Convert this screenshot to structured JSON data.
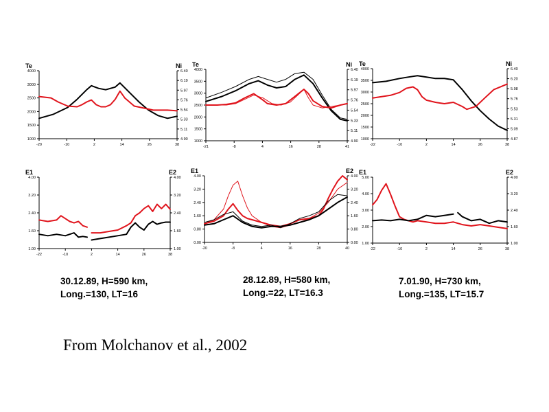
{
  "colors": {
    "red": "#e0141c",
    "black": "#000000",
    "axis": "#000000"
  },
  "chart_data": [
    {
      "type": "line",
      "y_left_label": "Te",
      "y_right_label": "Ni",
      "x_ticks": [
        "-20",
        "-10",
        "2",
        "14",
        "26",
        "38"
      ],
      "y_left_ticks": [
        "1000",
        "1500",
        "2000",
        "2500",
        "3000",
        "4000"
      ],
      "y_right_ticks": [
        "4.90",
        "5.11",
        "5.33",
        "5.54",
        "5.76",
        "5.97",
        "6.19",
        "6.40"
      ],
      "xlim": [
        -20,
        38
      ],
      "ylim": [
        0,
        1
      ],
      "series": [
        {
          "color": "black",
          "width": 2,
          "dash": "",
          "x": [
            -20,
            -14,
            -8,
            -4,
            0,
            2,
            5,
            8,
            12,
            14,
            18,
            22,
            26,
            30,
            34,
            38
          ],
          "y": [
            0.3,
            0.36,
            0.46,
            0.58,
            0.72,
            0.78,
            0.74,
            0.72,
            0.76,
            0.82,
            0.68,
            0.54,
            0.42,
            0.34,
            0.3,
            0.33
          ]
        },
        {
          "color": "red",
          "width": 2,
          "dash": "",
          "x": [
            -20,
            -15,
            -12,
            -8,
            -4,
            -2,
            0,
            2,
            4,
            6,
            8,
            10,
            12,
            14,
            16,
            20,
            24,
            28,
            34,
            38
          ],
          "y": [
            0.62,
            0.6,
            0.54,
            0.48,
            0.47,
            0.5,
            0.54,
            0.57,
            0.5,
            0.47,
            0.47,
            0.5,
            0.58,
            0.7,
            0.6,
            0.48,
            0.45,
            0.42,
            0.42,
            0.41
          ]
        }
      ]
    },
    {
      "type": "line",
      "y_left_label": "Te",
      "y_right_label": "Ni",
      "x_ticks": [
        "-21",
        "-8",
        "4",
        "16",
        "28",
        "41"
      ],
      "y_left_ticks": [
        "1000",
        "1500",
        "2000",
        "2500",
        "3000",
        "3500",
        "4000"
      ],
      "y_right_ticks": [
        "4.90",
        "5.11",
        "5.33",
        "5.54",
        "5.76",
        "5.97",
        "6.19",
        "6.40"
      ],
      "xlim": [
        -21,
        41
      ],
      "ylim": [
        0,
        1
      ],
      "series": [
        {
          "color": "black",
          "width": 2,
          "dash": "",
          "x": [
            -21,
            -14,
            -8,
            -2,
            2,
            6,
            10,
            14,
            18,
            22,
            26,
            30,
            34,
            38,
            41
          ],
          "y": [
            0.55,
            0.62,
            0.7,
            0.8,
            0.84,
            0.78,
            0.74,
            0.76,
            0.86,
            0.92,
            0.8,
            0.6,
            0.42,
            0.3,
            0.28
          ]
        },
        {
          "color": "black",
          "width": 1,
          "dash": "",
          "x": [
            -21,
            -14,
            -8,
            -2,
            2,
            6,
            10,
            14,
            18,
            22,
            26,
            30,
            34,
            38,
            41
          ],
          "y": [
            0.6,
            0.68,
            0.76,
            0.86,
            0.9,
            0.86,
            0.82,
            0.86,
            0.94,
            0.96,
            0.86,
            0.64,
            0.44,
            0.32,
            0.3
          ]
        },
        {
          "color": "red",
          "width": 2,
          "dash": "",
          "x": [
            -21,
            -16,
            -12,
            -8,
            -4,
            0,
            4,
            6,
            10,
            14,
            18,
            22,
            24,
            26,
            30,
            34,
            38,
            41
          ],
          "y": [
            0.5,
            0.5,
            0.51,
            0.53,
            0.6,
            0.66,
            0.57,
            0.52,
            0.5,
            0.52,
            0.62,
            0.72,
            0.66,
            0.56,
            0.48,
            0.46,
            0.5,
            0.52
          ]
        },
        {
          "color": "red",
          "width": 1,
          "dash": "",
          "x": [
            -21,
            -16,
            -12,
            -8,
            -4,
            0,
            4,
            8,
            12,
            16,
            20,
            22,
            24,
            26,
            30,
            34,
            38,
            41
          ],
          "y": [
            0.5,
            0.5,
            0.5,
            0.52,
            0.58,
            0.64,
            0.6,
            0.52,
            0.5,
            0.54,
            0.66,
            0.72,
            0.6,
            0.5,
            0.46,
            0.48,
            0.5,
            0.52
          ]
        }
      ]
    },
    {
      "type": "line",
      "y_left_label": "Te",
      "y_right_label": "Ni",
      "x_ticks": [
        "-22",
        "-10",
        "2",
        "14",
        "26",
        "38"
      ],
      "y_left_ticks": [
        "1000",
        "1500",
        "2000",
        "2500",
        "3000",
        "3500",
        "4000"
      ],
      "y_right_ticks": [
        "4.87",
        "5.09",
        "5.31",
        "5.53",
        "5.76",
        "5.98",
        "6.20",
        "6.40"
      ],
      "xlim": [
        -22,
        38
      ],
      "ylim": [
        0,
        1
      ],
      "series": [
        {
          "color": "black",
          "width": 2,
          "dash": "",
          "x": [
            -22,
            -16,
            -10,
            -6,
            -2,
            2,
            6,
            10,
            14,
            18,
            22,
            26,
            30,
            34,
            38
          ],
          "y": [
            0.8,
            0.82,
            0.86,
            0.88,
            0.9,
            0.88,
            0.86,
            0.86,
            0.84,
            0.7,
            0.54,
            0.4,
            0.28,
            0.18,
            0.12
          ]
        },
        {
          "color": "red",
          "width": 2,
          "dash": "",
          "x": [
            -22,
            -18,
            -14,
            -10,
            -7,
            -4,
            -2,
            0,
            2,
            6,
            10,
            14,
            18,
            20,
            24,
            28,
            32,
            38
          ],
          "y": [
            0.58,
            0.6,
            0.62,
            0.66,
            0.72,
            0.74,
            0.7,
            0.6,
            0.55,
            0.52,
            0.5,
            0.52,
            0.46,
            0.42,
            0.46,
            0.58,
            0.7,
            0.78
          ]
        }
      ]
    },
    {
      "type": "line",
      "y_left_label": "E1",
      "y_right_label": "E2",
      "x_ticks": [
        "-22",
        "-10",
        "2",
        "14",
        "26",
        "38"
      ],
      "y_left_ticks": [
        "1.00",
        "1.60",
        "2.40",
        "3.20",
        "4.00"
      ],
      "y_right_ticks": [
        "1.00",
        "1.60",
        "2.40",
        "3.20",
        "4.00"
      ],
      "xlim": [
        -22,
        38
      ],
      "ylim": [
        0,
        1
      ],
      "series": [
        {
          "color": "red",
          "width": 2,
          "dash": "",
          "x": [
            -22,
            -18,
            -14,
            -12,
            -10,
            -8,
            -6,
            -4,
            -2,
            0
          ],
          "y": [
            0.4,
            0.38,
            0.4,
            0.46,
            0.42,
            0.38,
            0.36,
            0.38,
            0.32,
            0.3
          ]
        },
        {
          "color": "red",
          "width": 2,
          "dash": "",
          "x": [
            2,
            6,
            10,
            14,
            18,
            20,
            22,
            24,
            26,
            28,
            30,
            32,
            34,
            36,
            38
          ],
          "y": [
            0.22,
            0.22,
            0.24,
            0.26,
            0.32,
            0.36,
            0.46,
            0.5,
            0.56,
            0.6,
            0.52,
            0.62,
            0.56,
            0.62,
            0.55
          ]
        },
        {
          "color": "black",
          "width": 2,
          "dash": "",
          "x": [
            -22,
            -18,
            -14,
            -10,
            -6,
            -4,
            -2,
            0
          ],
          "y": [
            0.2,
            0.18,
            0.2,
            0.18,
            0.22,
            0.16,
            0.17,
            0.16
          ]
        },
        {
          "color": "black",
          "width": 2,
          "dash": "",
          "x": [
            2,
            6,
            10,
            14,
            18,
            20,
            22,
            24,
            26,
            28,
            30,
            32,
            34,
            36,
            38
          ],
          "y": [
            0.12,
            0.14,
            0.16,
            0.18,
            0.2,
            0.3,
            0.36,
            0.3,
            0.26,
            0.34,
            0.38,
            0.34,
            0.36,
            0.37,
            0.37
          ]
        }
      ]
    },
    {
      "type": "line",
      "y_left_label": "E1",
      "y_right_label": "E2",
      "x_ticks": [
        "-20",
        "-8",
        "4",
        "16",
        "28",
        "40"
      ],
      "y_left_ticks": [
        "0.00",
        "0.80",
        "1.60",
        "2.40",
        "3.20",
        "4.00"
      ],
      "y_right_ticks": [
        "0.00",
        "0.80",
        "1.60",
        "2.40",
        "3.20",
        "4.00"
      ],
      "xlim": [
        -20,
        40
      ],
      "ylim": [
        0,
        1
      ],
      "series": [
        {
          "color": "red",
          "width": 1,
          "dash": "",
          "x": [
            -20,
            -16,
            -12,
            -10,
            -8,
            -6,
            -4,
            -2,
            0,
            4,
            8,
            12,
            16,
            20,
            24,
            28,
            32,
            36,
            40
          ],
          "y": [
            0.28,
            0.34,
            0.5,
            0.7,
            0.86,
            0.92,
            0.7,
            0.52,
            0.4,
            0.3,
            0.24,
            0.22,
            0.26,
            0.3,
            0.36,
            0.44,
            0.6,
            0.8,
            0.9
          ]
        },
        {
          "color": "red",
          "width": 2,
          "dash": "",
          "x": [
            -20,
            -16,
            -12,
            -10,
            -8,
            -6,
            -4,
            -2,
            0,
            4,
            8,
            12,
            16,
            20,
            24,
            28,
            30,
            32,
            34,
            36,
            38,
            40
          ],
          "y": [
            0.28,
            0.32,
            0.4,
            0.5,
            0.58,
            0.48,
            0.4,
            0.36,
            0.34,
            0.3,
            0.26,
            0.24,
            0.28,
            0.34,
            0.36,
            0.4,
            0.5,
            0.66,
            0.8,
            0.92,
            1.0,
            0.94
          ]
        },
        {
          "color": "black",
          "width": 2,
          "dash": "",
          "x": [
            -20,
            -16,
            -12,
            -8,
            -4,
            0,
            4,
            8,
            12,
            16,
            20,
            24,
            28,
            32,
            36,
            40
          ],
          "y": [
            0.26,
            0.28,
            0.34,
            0.4,
            0.3,
            0.24,
            0.22,
            0.24,
            0.24,
            0.26,
            0.3,
            0.34,
            0.4,
            0.5,
            0.6,
            0.68
          ]
        },
        {
          "color": "black",
          "width": 1,
          "dash": "",
          "x": [
            -20,
            -16,
            -12,
            -8,
            -4,
            0,
            4,
            8,
            12,
            16,
            20,
            24,
            28,
            32,
            36,
            40
          ],
          "y": [
            0.3,
            0.34,
            0.42,
            0.46,
            0.32,
            0.26,
            0.24,
            0.26,
            0.22,
            0.28,
            0.36,
            0.4,
            0.46,
            0.62,
            0.72,
            0.7
          ]
        }
      ]
    },
    {
      "type": "line",
      "y_left_label": "E1",
      "y_right_label": "E2",
      "x_ticks": [
        "-22",
        "-10",
        "2",
        "14",
        "26",
        "38"
      ],
      "y_left_ticks": [
        "1.00",
        "2.00",
        "3.00",
        "4.00",
        "5.00"
      ],
      "y_right_ticks": [
        "1.00",
        "1.60",
        "2.40",
        "3.20",
        "4.00"
      ],
      "xlim": [
        -22,
        38
      ],
      "ylim": [
        0,
        1
      ],
      "series": [
        {
          "color": "red",
          "width": 2,
          "dash": "",
          "x": [
            -22,
            -20,
            -18,
            -16,
            -14,
            -12,
            -10,
            -8,
            -6,
            -4,
            -2,
            2,
            6,
            10,
            14,
            18,
            22,
            26,
            30,
            34,
            38
          ],
          "y": [
            0.58,
            0.66,
            0.8,
            0.9,
            0.74,
            0.56,
            0.4,
            0.36,
            0.34,
            0.32,
            0.34,
            0.32,
            0.3,
            0.3,
            0.32,
            0.28,
            0.26,
            0.28,
            0.26,
            0.24,
            0.22
          ]
        },
        {
          "color": "black",
          "width": 2,
          "dash": "",
          "x": [
            -22,
            -18,
            -14,
            -10,
            -6,
            -2,
            2,
            6,
            10,
            14
          ],
          "y": [
            0.34,
            0.35,
            0.34,
            0.36,
            0.34,
            0.36,
            0.42,
            0.4,
            0.42,
            0.44
          ]
        },
        {
          "color": "black",
          "width": 2,
          "dash": "",
          "x": [
            16,
            18,
            22,
            26,
            30,
            34,
            38
          ],
          "y": [
            0.46,
            0.4,
            0.34,
            0.36,
            0.3,
            0.34,
            0.32
          ]
        }
      ]
    }
  ],
  "captions": [
    {
      "line1": "30.12.89, H=590 km,",
      "line2": "Long.=130, LT=16"
    },
    {
      "line1": "28.12.89, H=580 km,",
      "line2": "Long.=22, LT=16.3"
    },
    {
      "line1": "7.01.90, H=730 km,",
      "line2": "Long.=135, LT=15.7"
    }
  ],
  "source": "From Molchanov et al., 2002"
}
